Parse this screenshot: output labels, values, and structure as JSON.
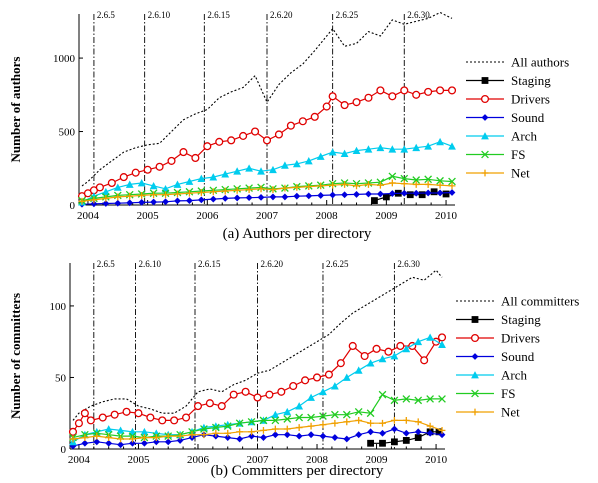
{
  "chart_data": [
    {
      "type": "line",
      "caption": "(a)  Authors per directory",
      "ylabel": "Number of authors",
      "ylim": [
        0,
        1300
      ],
      "xlim": [
        2003.85,
        2010.15
      ],
      "yticks": [
        "0",
        "500",
        "1000"
      ],
      "ytick_values": [
        0,
        500,
        1000
      ],
      "xticks": [
        "2004",
        "2005",
        "2006",
        "2007",
        "2008",
        "2009",
        "2010"
      ],
      "xtick_values": [
        2004,
        2005,
        2006,
        2007,
        2008,
        2009,
        2010
      ],
      "versions": [
        {
          "label": "2.6.5",
          "x": 2004.1
        },
        {
          "label": "2.6.10",
          "x": 2004.95
        },
        {
          "label": "2.6.15",
          "x": 2005.95
        },
        {
          "label": "2.6.20",
          "x": 2007.0
        },
        {
          "label": "2.6.25",
          "x": 2008.1
        },
        {
          "label": "2.6.30",
          "x": 2009.3
        }
      ],
      "legend_position": "right",
      "series": [
        {
          "name": "All authors",
          "color": "#000000",
          "style": "dotted",
          "marker": "none",
          "x": [
            2003.9,
            2004.0,
            2004.2,
            2004.4,
            2004.6,
            2004.8,
            2005.0,
            2005.2,
            2005.4,
            2005.6,
            2005.8,
            2006.0,
            2006.2,
            2006.4,
            2006.6,
            2006.8,
            2007.0,
            2007.2,
            2007.4,
            2007.6,
            2007.8,
            2008.0,
            2008.1,
            2008.3,
            2008.5,
            2008.7,
            2008.9,
            2009.1,
            2009.3,
            2009.5,
            2009.7,
            2009.9,
            2010.1
          ],
          "y": [
            130,
            160,
            240,
            300,
            360,
            390,
            410,
            420,
            500,
            580,
            620,
            650,
            730,
            770,
            800,
            880,
            700,
            820,
            900,
            960,
            1050,
            1150,
            1200,
            1080,
            1100,
            1180,
            1150,
            1260,
            1230,
            1250,
            1270,
            1310,
            1270
          ]
        },
        {
          "name": "Staging",
          "color": "#000000",
          "style": "solid",
          "marker": "square",
          "x": [
            2008.8,
            2009.0,
            2009.2,
            2009.4,
            2009.6,
            2009.8,
            2010.0
          ],
          "y": [
            30,
            55,
            80,
            70,
            70,
            90,
            75
          ]
        },
        {
          "name": "Drivers",
          "color": "#e00000",
          "style": "solid",
          "marker": "circle",
          "x": [
            2003.9,
            2004.0,
            2004.1,
            2004.2,
            2004.4,
            2004.6,
            2004.8,
            2005.0,
            2005.2,
            2005.4,
            2005.6,
            2005.8,
            2006.0,
            2006.2,
            2006.4,
            2006.6,
            2006.8,
            2007.0,
            2007.2,
            2007.4,
            2007.6,
            2007.8,
            2008.0,
            2008.1,
            2008.3,
            2008.5,
            2008.7,
            2008.9,
            2009.1,
            2009.3,
            2009.5,
            2009.7,
            2009.9,
            2010.1
          ],
          "y": [
            60,
            80,
            100,
            120,
            150,
            190,
            220,
            240,
            260,
            300,
            360,
            320,
            400,
            430,
            440,
            470,
            500,
            440,
            480,
            540,
            570,
            600,
            670,
            740,
            680,
            700,
            730,
            780,
            740,
            780,
            750,
            770,
            780,
            780
          ]
        },
        {
          "name": "Sound",
          "color": "#0000dd",
          "style": "solid",
          "marker": "diamond",
          "x": [
            2003.9,
            2004.1,
            2004.3,
            2004.5,
            2004.7,
            2004.9,
            2005.1,
            2005.3,
            2005.5,
            2005.7,
            2005.9,
            2006.1,
            2006.3,
            2006.5,
            2006.7,
            2006.9,
            2007.1,
            2007.3,
            2007.5,
            2007.7,
            2007.9,
            2008.1,
            2008.3,
            2008.5,
            2008.7,
            2008.9,
            2009.1,
            2009.3,
            2009.5,
            2009.7,
            2009.9,
            2010.1
          ],
          "y": [
            5,
            8,
            10,
            12,
            15,
            18,
            20,
            22,
            28,
            30,
            35,
            40,
            45,
            48,
            50,
            52,
            55,
            55,
            60,
            62,
            65,
            68,
            70,
            72,
            75,
            75,
            78,
            80,
            80,
            82,
            82,
            85
          ]
        },
        {
          "name": "Arch",
          "color": "#00ccee",
          "style": "solid",
          "marker": "triangle",
          "x": [
            2003.9,
            2004.1,
            2004.3,
            2004.5,
            2004.7,
            2004.9,
            2005.1,
            2005.3,
            2005.5,
            2005.7,
            2005.9,
            2006.1,
            2006.3,
            2006.5,
            2006.7,
            2006.9,
            2007.1,
            2007.3,
            2007.5,
            2007.7,
            2007.9,
            2008.1,
            2008.3,
            2008.5,
            2008.7,
            2008.9,
            2009.1,
            2009.3,
            2009.5,
            2009.7,
            2009.9,
            2010.1
          ],
          "y": [
            20,
            60,
            90,
            120,
            140,
            150,
            130,
            110,
            140,
            160,
            180,
            190,
            210,
            230,
            250,
            230,
            240,
            270,
            280,
            300,
            330,
            360,
            350,
            370,
            380,
            390,
            380,
            380,
            390,
            400,
            430,
            400
          ]
        },
        {
          "name": "FS",
          "color": "#22cc22",
          "style": "solid",
          "marker": "cross",
          "x": [
            2003.9,
            2004.1,
            2004.3,
            2004.5,
            2004.7,
            2004.9,
            2005.1,
            2005.3,
            2005.5,
            2005.7,
            2005.9,
            2006.1,
            2006.3,
            2006.5,
            2006.7,
            2006.9,
            2007.1,
            2007.3,
            2007.5,
            2007.7,
            2007.9,
            2008.1,
            2008.3,
            2008.5,
            2008.7,
            2008.9,
            2009.1,
            2009.3,
            2009.5,
            2009.7,
            2009.9,
            2010.1
          ],
          "y": [
            30,
            45,
            55,
            65,
            70,
            75,
            80,
            80,
            85,
            90,
            95,
            100,
            105,
            110,
            115,
            120,
            110,
            115,
            125,
            130,
            135,
            145,
            150,
            145,
            150,
            155,
            195,
            180,
            170,
            175,
            165,
            160
          ]
        },
        {
          "name": "Net",
          "color": "#f0a000",
          "style": "solid",
          "marker": "plus",
          "x": [
            2003.9,
            2004.1,
            2004.3,
            2004.5,
            2004.7,
            2004.9,
            2005.1,
            2005.3,
            2005.5,
            2005.7,
            2005.9,
            2006.1,
            2006.3,
            2006.5,
            2006.7,
            2006.9,
            2007.1,
            2007.3,
            2007.5,
            2007.7,
            2007.9,
            2008.1,
            2008.3,
            2008.5,
            2008.7,
            2008.9,
            2009.1,
            2009.3,
            2009.5,
            2009.7,
            2009.9,
            2010.1
          ],
          "y": [
            25,
            35,
            45,
            55,
            60,
            65,
            70,
            70,
            75,
            80,
            85,
            90,
            95,
            100,
            105,
            110,
            105,
            115,
            120,
            125,
            130,
            135,
            140,
            130,
            140,
            135,
            150,
            145,
            140,
            140,
            135,
            130
          ]
        }
      ]
    },
    {
      "type": "line",
      "caption": "(b)  Committers per directory",
      "ylabel": "Number of committers",
      "ylim": [
        0,
        130
      ],
      "xlim": [
        2003.85,
        2010.15
      ],
      "yticks": [
        "0",
        "50",
        "100"
      ],
      "ytick_values": [
        0,
        50,
        100
      ],
      "xticks": [
        "2004",
        "2005",
        "2006",
        "2007",
        "2008",
        "2009",
        "2010"
      ],
      "xtick_values": [
        2004,
        2005,
        2006,
        2007,
        2008,
        2009,
        2010
      ],
      "versions": [
        {
          "label": "2.6.5",
          "x": 2004.25
        },
        {
          "label": "2.6.10",
          "x": 2004.95
        },
        {
          "label": "2.6.15",
          "x": 2005.95
        },
        {
          "label": "2.6.20",
          "x": 2007.0
        },
        {
          "label": "2.6.25",
          "x": 2008.1
        },
        {
          "label": "2.6.30",
          "x": 2009.3
        }
      ],
      "legend_position": "right",
      "series": [
        {
          "name": "All committers",
          "color": "#000000",
          "style": "dotted",
          "marker": "none",
          "x": [
            2003.9,
            2004.0,
            2004.2,
            2004.4,
            2004.6,
            2004.8,
            2005.0,
            2005.2,
            2005.4,
            2005.6,
            2005.8,
            2006.0,
            2006.2,
            2006.4,
            2006.6,
            2006.8,
            2007.0,
            2007.2,
            2007.4,
            2007.6,
            2007.8,
            2008.0,
            2008.2,
            2008.4,
            2008.6,
            2008.8,
            2009.0,
            2009.2,
            2009.4,
            2009.6,
            2009.8,
            2010.0,
            2010.1
          ],
          "y": [
            20,
            25,
            30,
            33,
            35,
            35,
            30,
            28,
            25,
            25,
            30,
            40,
            42,
            40,
            45,
            48,
            53,
            55,
            60,
            65,
            70,
            75,
            80,
            88,
            95,
            100,
            105,
            110,
            115,
            120,
            118,
            125,
            120
          ]
        },
        {
          "name": "Staging",
          "color": "#000000",
          "style": "solid",
          "marker": "square",
          "x": [
            2008.9,
            2009.1,
            2009.3,
            2009.5,
            2009.7,
            2009.9,
            2010.05
          ],
          "y": [
            4,
            4,
            5,
            6,
            8,
            12,
            12
          ]
        },
        {
          "name": "Drivers",
          "color": "#e00000",
          "style": "solid",
          "marker": "circle",
          "x": [
            2003.9,
            2004.0,
            2004.1,
            2004.2,
            2004.4,
            2004.6,
            2004.8,
            2005.0,
            2005.2,
            2005.4,
            2005.6,
            2005.8,
            2006.0,
            2006.2,
            2006.4,
            2006.6,
            2006.8,
            2007.0,
            2007.2,
            2007.4,
            2007.6,
            2007.8,
            2008.0,
            2008.2,
            2008.4,
            2008.6,
            2008.8,
            2009.0,
            2009.2,
            2009.4,
            2009.6,
            2009.8,
            2010.0,
            2010.1
          ],
          "y": [
            12,
            18,
            25,
            20,
            22,
            24,
            26,
            25,
            22,
            20,
            20,
            22,
            30,
            32,
            30,
            38,
            40,
            36,
            38,
            40,
            44,
            48,
            50,
            52,
            60,
            72,
            65,
            70,
            68,
            72,
            72,
            62,
            75,
            78
          ]
        },
        {
          "name": "Sound",
          "color": "#0000dd",
          "style": "solid",
          "marker": "diamond",
          "x": [
            2003.9,
            2004.1,
            2004.3,
            2004.5,
            2004.7,
            2004.9,
            2005.1,
            2005.3,
            2005.5,
            2005.7,
            2005.9,
            2006.1,
            2006.3,
            2006.5,
            2006.7,
            2006.9,
            2007.1,
            2007.3,
            2007.5,
            2007.7,
            2007.9,
            2008.1,
            2008.3,
            2008.5,
            2008.7,
            2008.9,
            2009.1,
            2009.3,
            2009.5,
            2009.7,
            2009.9,
            2010.1
          ],
          "y": [
            2,
            4,
            5,
            4,
            3,
            4,
            4,
            5,
            5,
            6,
            8,
            10,
            9,
            8,
            7,
            9,
            8,
            10,
            10,
            9,
            10,
            9,
            8,
            7,
            10,
            12,
            11,
            14,
            11,
            12,
            11,
            10
          ]
        },
        {
          "name": "Arch",
          "color": "#00ccee",
          "style": "solid",
          "marker": "triangle",
          "x": [
            2003.9,
            2004.1,
            2004.3,
            2004.5,
            2004.7,
            2004.9,
            2005.1,
            2005.3,
            2005.5,
            2005.7,
            2005.9,
            2006.1,
            2006.3,
            2006.5,
            2006.7,
            2006.9,
            2007.1,
            2007.3,
            2007.5,
            2007.7,
            2007.9,
            2008.1,
            2008.3,
            2008.5,
            2008.7,
            2008.9,
            2009.1,
            2009.3,
            2009.5,
            2009.7,
            2009.9,
            2010.1
          ],
          "y": [
            5,
            10,
            12,
            14,
            13,
            12,
            12,
            11,
            10,
            10,
            12,
            15,
            16,
            17,
            18,
            19,
            20,
            24,
            26,
            30,
            36,
            40,
            44,
            50,
            55,
            60,
            63,
            65,
            70,
            75,
            78,
            73
          ]
        },
        {
          "name": "FS",
          "color": "#22cc22",
          "style": "solid",
          "marker": "cross",
          "x": [
            2003.9,
            2004.1,
            2004.3,
            2004.5,
            2004.7,
            2004.9,
            2005.1,
            2005.3,
            2005.5,
            2005.7,
            2005.9,
            2006.1,
            2006.3,
            2006.5,
            2006.7,
            2006.9,
            2007.1,
            2007.3,
            2007.5,
            2007.7,
            2007.9,
            2008.1,
            2008.3,
            2008.5,
            2008.7,
            2008.9,
            2009.1,
            2009.3,
            2009.5,
            2009.7,
            2009.9,
            2010.1
          ],
          "y": [
            8,
            10,
            11,
            10,
            9,
            9,
            8,
            9,
            9,
            10,
            12,
            14,
            15,
            16,
            18,
            19,
            20,
            20,
            21,
            22,
            22,
            23,
            24,
            24,
            26,
            25,
            38,
            34,
            35,
            34,
            35,
            35
          ]
        },
        {
          "name": "Net",
          "color": "#f0a000",
          "style": "solid",
          "marker": "plus",
          "x": [
            2003.9,
            2004.1,
            2004.3,
            2004.5,
            2004.7,
            2004.9,
            2005.1,
            2005.3,
            2005.5,
            2005.7,
            2005.9,
            2006.1,
            2006.3,
            2006.5,
            2006.7,
            2006.9,
            2007.1,
            2007.3,
            2007.5,
            2007.7,
            2007.9,
            2008.1,
            2008.3,
            2008.5,
            2008.7,
            2008.9,
            2009.1,
            2009.3,
            2009.5,
            2009.7,
            2009.9,
            2010.1
          ],
          "y": [
            7,
            8,
            9,
            8,
            7,
            7,
            8,
            8,
            9,
            9,
            10,
            10,
            11,
            11,
            12,
            12,
            13,
            14,
            14,
            15,
            16,
            17,
            18,
            19,
            20,
            18,
            18,
            20,
            20,
            19,
            16,
            13
          ]
        }
      ]
    }
  ]
}
